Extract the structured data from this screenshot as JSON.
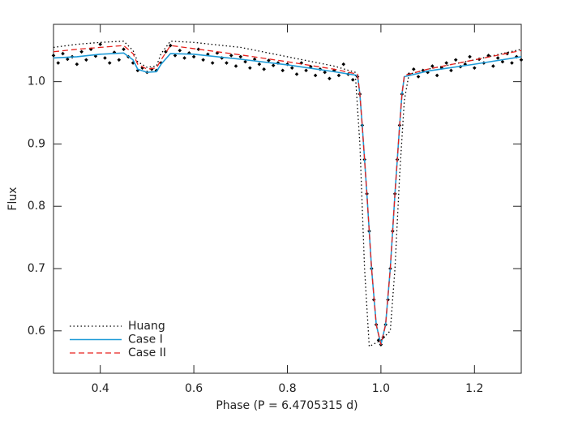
{
  "chart_data": {
    "type": "line",
    "x_label": "Phase (P = 6.4705315 d)",
    "y_label": "Flux",
    "xlim": [
      0.3,
      1.3
    ],
    "ylim": [
      0.532,
      1.092
    ],
    "xticks": [
      0.4,
      0.6,
      0.8,
      {
        "value": 1,
        "label": "1.0"
      },
      1.2
    ],
    "yticks": [
      0.6,
      0.7,
      0.8,
      0.9,
      {
        "value": 1,
        "label": "1.0"
      }
    ],
    "legend": "lower-left",
    "series": [
      {
        "name": "Huang",
        "color": "#000000",
        "style": "dotted",
        "x": [
          0.3,
          0.35,
          0.4,
          0.45,
          0.47,
          0.48,
          0.5,
          0.52,
          0.53,
          0.55,
          0.6,
          0.7,
          0.8,
          0.9,
          0.945,
          0.955,
          0.965,
          0.975,
          1.0,
          1.02,
          1.03,
          1.04,
          1.05,
          1.06,
          1.1,
          1.2,
          1.3
        ],
        "values": [
          1.055,
          1.06,
          1.063,
          1.065,
          1.05,
          1.032,
          1.023,
          1.025,
          1.045,
          1.065,
          1.063,
          1.055,
          1.04,
          1.025,
          1.015,
          0.9,
          0.7,
          0.575,
          0.585,
          0.6,
          0.7,
          0.85,
          0.97,
          1.012,
          1.02,
          1.035,
          1.052
        ]
      },
      {
        "name": "Case I",
        "color": "#1f9bd7",
        "style": "solid",
        "x": [
          0.3,
          0.35,
          0.4,
          0.45,
          0.47,
          0.48,
          0.5,
          0.52,
          0.53,
          0.55,
          0.6,
          0.7,
          0.8,
          0.9,
          0.95,
          0.955,
          0.96,
          0.97,
          0.98,
          0.99,
          1.0,
          1.01,
          1.02,
          1.03,
          1.04,
          1.045,
          1.05,
          1.1,
          1.2,
          1.3
        ],
        "values": [
          1.038,
          1.04,
          1.044,
          1.046,
          1.035,
          1.02,
          1.015,
          1.016,
          1.028,
          1.045,
          1.044,
          1.036,
          1.027,
          1.016,
          1.01,
          0.98,
          0.93,
          0.82,
          0.7,
          0.61,
          0.578,
          0.61,
          0.7,
          0.82,
          0.93,
          0.98,
          1.008,
          1.017,
          1.028,
          1.04
        ]
      },
      {
        "name": "Case II",
        "color": "#e8211d",
        "style": "dashed",
        "x": [
          0.3,
          0.35,
          0.4,
          0.45,
          0.47,
          0.48,
          0.5,
          0.52,
          0.53,
          0.55,
          0.6,
          0.7,
          0.8,
          0.9,
          0.95,
          0.955,
          0.96,
          0.97,
          0.98,
          0.99,
          1.0,
          1.01,
          1.02,
          1.03,
          1.04,
          1.045,
          1.05,
          1.1,
          1.2,
          1.3
        ],
        "values": [
          1.048,
          1.052,
          1.055,
          1.058,
          1.045,
          1.028,
          1.02,
          1.022,
          1.035,
          1.058,
          1.053,
          1.043,
          1.032,
          1.02,
          1.012,
          0.98,
          0.93,
          0.82,
          0.7,
          0.61,
          0.578,
          0.61,
          0.7,
          0.82,
          0.93,
          0.98,
          1.01,
          1.02,
          1.035,
          1.05
        ]
      }
    ],
    "points": {
      "color": "#000000",
      "x": [
        0.3,
        0.31,
        0.32,
        0.33,
        0.34,
        0.35,
        0.36,
        0.37,
        0.38,
        0.39,
        0.4,
        0.41,
        0.42,
        0.43,
        0.44,
        0.45,
        0.46,
        0.47,
        0.48,
        0.49,
        0.5,
        0.51,
        0.52,
        0.53,
        0.54,
        0.55,
        0.56,
        0.57,
        0.58,
        0.59,
        0.6,
        0.61,
        0.62,
        0.63,
        0.64,
        0.65,
        0.66,
        0.67,
        0.68,
        0.69,
        0.7,
        0.71,
        0.72,
        0.73,
        0.74,
        0.75,
        0.76,
        0.77,
        0.78,
        0.79,
        0.8,
        0.81,
        0.82,
        0.83,
        0.84,
        0.85,
        0.86,
        0.87,
        0.88,
        0.89,
        0.9,
        0.91,
        0.92,
        0.93,
        0.94,
        0.95,
        0.955,
        0.96,
        0.965,
        0.97,
        0.975,
        0.98,
        0.985,
        0.99,
        0.995,
        1.0,
        1.005,
        1.01,
        1.015,
        1.02,
        1.025,
        1.03,
        1.035,
        1.04,
        1.045,
        1.06,
        1.07,
        1.08,
        1.09,
        1.1,
        1.11,
        1.12,
        1.13,
        1.14,
        1.15,
        1.16,
        1.17,
        1.18,
        1.19,
        1.2,
        1.21,
        1.22,
        1.23,
        1.24,
        1.25,
        1.26,
        1.27,
        1.28,
        1.29,
        1.3
      ],
      "values": [
        1.042,
        1.03,
        1.045,
        1.036,
        1.04,
        1.028,
        1.048,
        1.035,
        1.052,
        1.041,
        1.06,
        1.038,
        1.03,
        1.047,
        1.035,
        1.052,
        1.04,
        1.03,
        1.018,
        1.022,
        1.015,
        1.02,
        1.018,
        1.03,
        1.048,
        1.058,
        1.042,
        1.05,
        1.038,
        1.046,
        1.04,
        1.052,
        1.035,
        1.044,
        1.03,
        1.046,
        1.038,
        1.03,
        1.042,
        1.025,
        1.04,
        1.032,
        1.022,
        1.036,
        1.028,
        1.02,
        1.034,
        1.026,
        1.03,
        1.018,
        1.028,
        1.022,
        1.012,
        1.03,
        1.018,
        1.024,
        1.01,
        1.02,
        1.015,
        1.005,
        1.018,
        1.01,
        1.028,
        1.012,
        1.003,
        1.008,
        0.98,
        0.93,
        0.875,
        0.82,
        0.76,
        0.7,
        0.65,
        0.61,
        0.585,
        0.578,
        0.59,
        0.61,
        0.65,
        0.7,
        0.76,
        0.82,
        0.875,
        0.93,
        0.98,
        1.012,
        1.02,
        1.008,
        1.018,
        1.015,
        1.025,
        1.01,
        1.022,
        1.03,
        1.018,
        1.035,
        1.024,
        1.028,
        1.04,
        1.022,
        1.036,
        1.03,
        1.042,
        1.025,
        1.038,
        1.032,
        1.045,
        1.03,
        1.04,
        1.035
      ]
    }
  }
}
